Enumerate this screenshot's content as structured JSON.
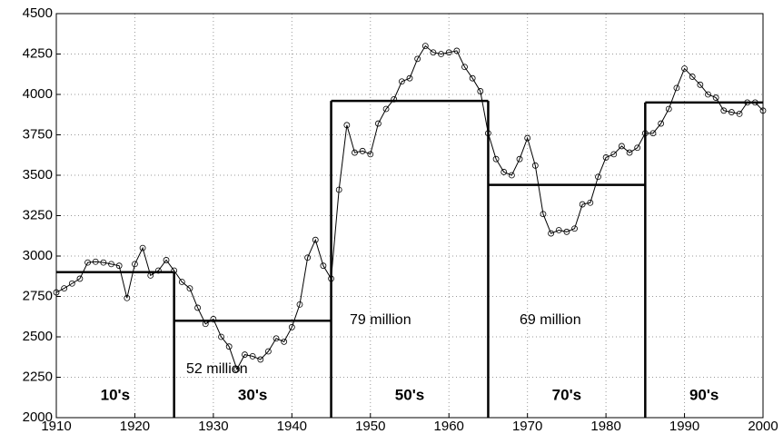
{
  "chart_data": {
    "type": "line",
    "x": [
      1910,
      1911,
      1912,
      1913,
      1914,
      1915,
      1916,
      1917,
      1918,
      1919,
      1920,
      1921,
      1922,
      1923,
      1924,
      1925,
      1926,
      1927,
      1928,
      1929,
      1930,
      1931,
      1932,
      1933,
      1934,
      1935,
      1936,
      1937,
      1938,
      1939,
      1940,
      1941,
      1942,
      1943,
      1944,
      1945,
      1946,
      1947,
      1948,
      1949,
      1950,
      1951,
      1952,
      1953,
      1954,
      1955,
      1956,
      1957,
      1958,
      1959,
      1960,
      1961,
      1962,
      1963,
      1964,
      1965,
      1966,
      1967,
      1968,
      1969,
      1970,
      1971,
      1972,
      1973,
      1974,
      1975,
      1976,
      1977,
      1978,
      1979,
      1980,
      1981,
      1982,
      1983,
      1984,
      1985,
      1986,
      1987,
      1988,
      1989,
      1990,
      1991,
      1992,
      1993,
      1994,
      1995,
      1996,
      1997,
      1998,
      1999,
      2000
    ],
    "values": [
      2775,
      2800,
      2830,
      2860,
      2960,
      2965,
      2960,
      2950,
      2940,
      2740,
      2950,
      3050,
      2880,
      2910,
      2975,
      2910,
      2840,
      2800,
      2680,
      2580,
      2610,
      2500,
      2440,
      2300,
      2390,
      2380,
      2360,
      2410,
      2490,
      2470,
      2560,
      2700,
      2990,
      3100,
      2940,
      2860,
      3410,
      3810,
      3640,
      3650,
      3630,
      3820,
      3910,
      3970,
      4080,
      4100,
      4220,
      4300,
      4260,
      4250,
      4260,
      4270,
      4170,
      4100,
      4020,
      3760,
      3600,
      3520,
      3500,
      3600,
      3730,
      3560,
      3260,
      3140,
      3160,
      3150,
      3170,
      3320,
      3330,
      3490,
      3610,
      3630,
      3680,
      3640,
      3670,
      3760,
      3760,
      3820,
      3910,
      4040,
      4160,
      4110,
      4060,
      4000,
      3980,
      3900,
      3890,
      3880,
      3950,
      3950,
      3900
    ],
    "color": "#000000",
    "steps": {
      "edges": [
        1910,
        1925,
        1945,
        1965,
        1985,
        2000
      ],
      "values": [
        2900,
        2600,
        3960,
        3440,
        3950
      ],
      "color": "#000000"
    },
    "decade_labels": [
      "10's",
      "30's",
      "50's",
      "70's",
      "90's"
    ],
    "annotations": [
      "52 million",
      "79 million",
      "69 million"
    ],
    "xlim": [
      1910,
      2000
    ],
    "xticks": [
      1910,
      1920,
      1930,
      1940,
      1950,
      1960,
      1970,
      1980,
      1990,
      2000
    ],
    "ylim": [
      2000,
      4500
    ],
    "yticks": [
      2000,
      2250,
      2500,
      2750,
      3000,
      3250,
      3500,
      3750,
      4000,
      4250,
      4500
    ],
    "grid": true
  }
}
